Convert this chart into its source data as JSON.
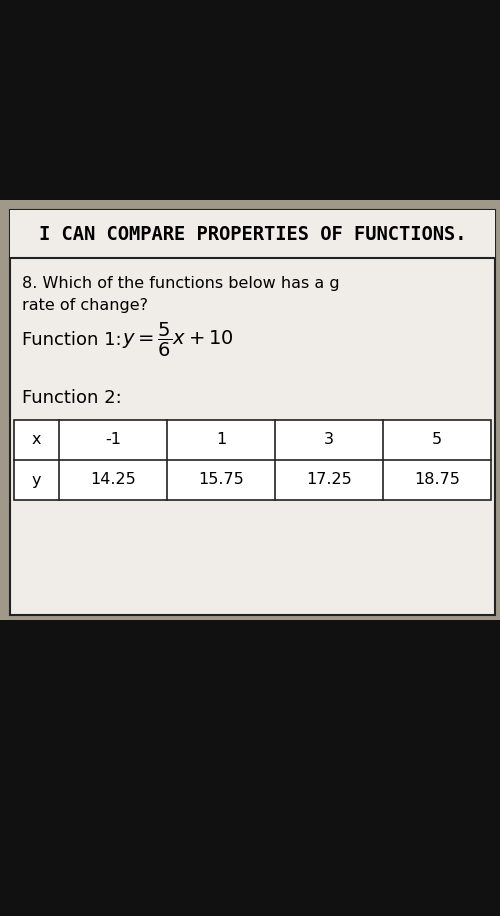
{
  "title": "I CAN COMPARE PROPERTIES OF FUNCTIONS.",
  "question_line1": "8. Which of the functions below has a g",
  "question_line2": "rate of change?",
  "function1_label": "Function 1:",
  "function2_label": "Function 2:",
  "table_headers": [
    "x",
    "-1",
    "1",
    "3",
    "5"
  ],
  "table_row_y": [
    "y",
    "14.25",
    "15.75",
    "17.25",
    "18.75"
  ],
  "bg_dark": "#1a1a1a",
  "bg_mid": "#b0a898",
  "card_color": "#f0ede8",
  "border_color": "#222222",
  "title_font_size": 13.5,
  "question_font_size": 11.5,
  "function_label_font_size": 13,
  "table_font_size": 11.5
}
